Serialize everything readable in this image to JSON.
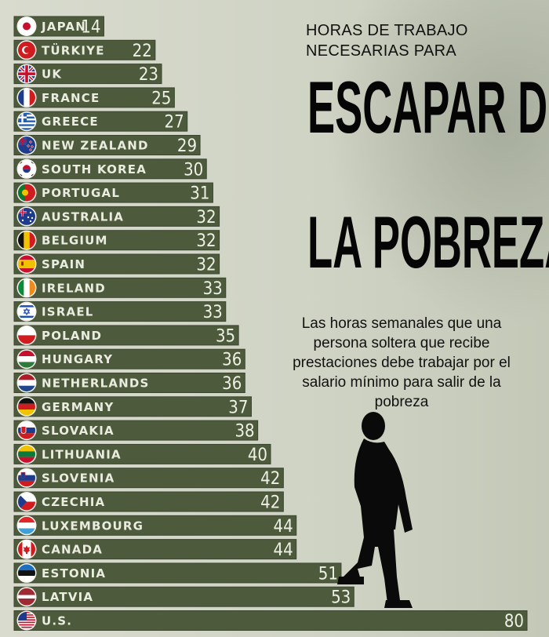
{
  "header": {
    "kicker_line1": "HORAS DE TRABAJO",
    "kicker_line2": "NECESARIAS PARA",
    "headline_line1": "ESCAPAR DE",
    "headline_line2": "LA POBREZA",
    "subtitle": "Las horas semanales que una persona soltera que recibe prestaciones debe trabajar por el salario mínimo para salir de la pobreza"
  },
  "colors": {
    "bar": "#4e5a3c",
    "bar_edge": "#3a4530",
    "label_text": "#e9ecdf",
    "background": "#cfd3c4"
  },
  "chart_data": {
    "type": "bar",
    "orientation": "horizontal",
    "categories": [
      "JAPAN",
      "TÜRKIYE",
      "UK",
      "FRANCE",
      "GREECE",
      "NEW ZEALAND",
      "SOUTH KOREA",
      "PORTUGAL",
      "AUSTRALIA",
      "BELGIUM",
      "SPAIN",
      "IRELAND",
      "ISRAEL",
      "POLAND",
      "HUNGARY",
      "NETHERLANDS",
      "GERMANY",
      "SLOVAKIA",
      "LITHUANIA",
      "SLOVENIA",
      "CZECHIA",
      "LUXEMBOURG",
      "CANADA",
      "ESTONIA",
      "LATVIA",
      "U.S."
    ],
    "values": [
      14,
      22,
      23,
      25,
      27,
      29,
      30,
      31,
      32,
      32,
      32,
      33,
      33,
      35,
      36,
      36,
      37,
      38,
      40,
      42,
      42,
      44,
      44,
      51,
      53,
      80
    ],
    "flags": [
      "japan-flag",
      "turkiye-flag",
      "uk-flag",
      "france-flag",
      "greece-flag",
      "new-zealand-flag",
      "south-korea-flag",
      "portugal-flag",
      "australia-flag",
      "belgium-flag",
      "spain-flag",
      "ireland-flag",
      "israel-flag",
      "poland-flag",
      "hungary-flag",
      "netherlands-flag",
      "germany-flag",
      "slovakia-flag",
      "lithuania-flag",
      "slovenia-flag",
      "czechia-flag",
      "luxembourg-flag",
      "canada-flag",
      "estonia-flag",
      "latvia-flag",
      "us-flag"
    ],
    "xlim": [
      0,
      80
    ],
    "grid": false
  }
}
